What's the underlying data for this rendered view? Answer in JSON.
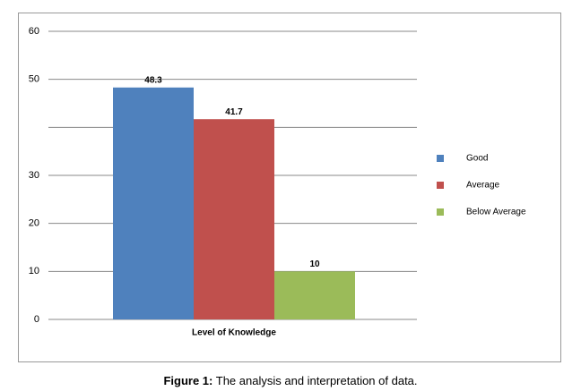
{
  "chart_data": {
    "type": "bar",
    "x_label": "Level of Knowledge",
    "categories": [
      "Level of Knowledge"
    ],
    "series": [
      {
        "name": "Good",
        "color": "#4f81bd",
        "values": [
          48.3
        ]
      },
      {
        "name": "Average",
        "color": "#c0504d",
        "values": [
          41.7
        ]
      },
      {
        "name": "Below Average",
        "color": "#9bbb59",
        "values": [
          10
        ]
      }
    ],
    "ylim": [
      0,
      60
    ],
    "yticks": [
      0,
      10,
      20,
      30,
      {
        "value": 40,
        "label": null
      },
      50,
      60
    ],
    "grid": true,
    "legend": "right"
  },
  "caption": {
    "label": "Figure 1:",
    "text": "The analysis and interpretation of data."
  }
}
